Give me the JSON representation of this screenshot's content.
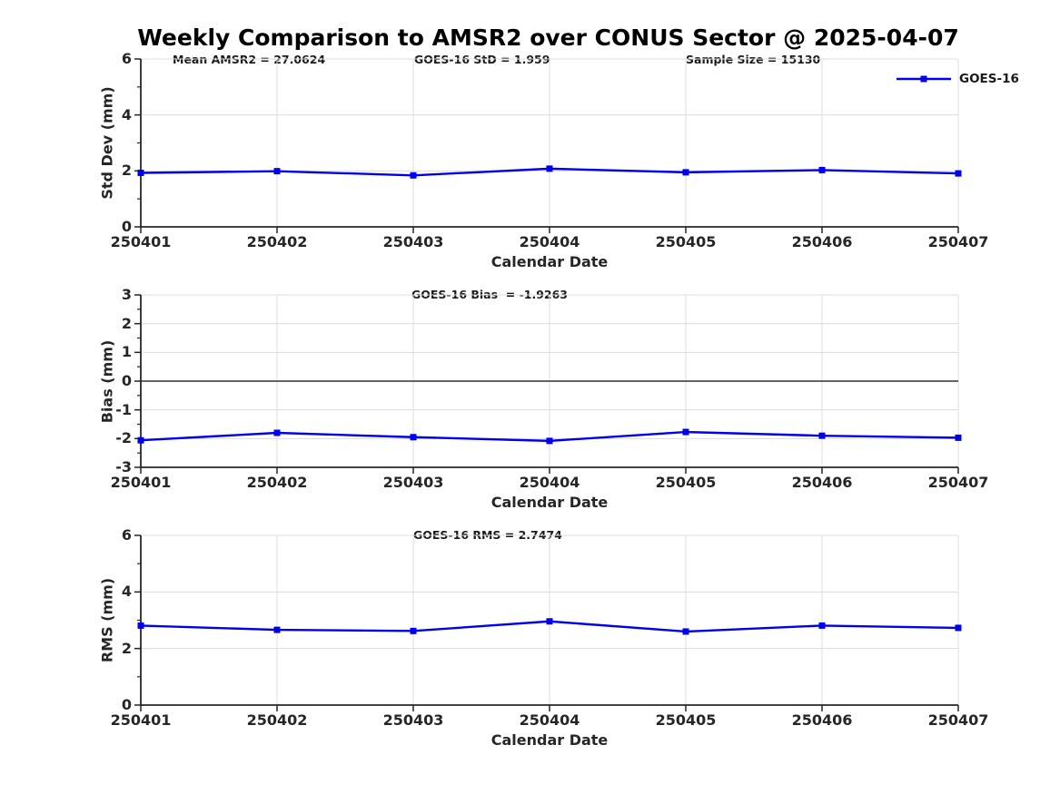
{
  "title": "Weekly Comparison to AMSR2 over CONUS Sector @ 2025-04-07",
  "legend": {
    "label": "GOES-16",
    "position": "top-right"
  },
  "colors": {
    "line": "#0000ee",
    "grid": "#dcdcdc",
    "spine": "#262626",
    "zero_line": "#4d4d4d",
    "text": "#262626"
  },
  "chart_data": [
    {
      "type": "line",
      "name": "std-dev",
      "xlabel": "Calendar Date",
      "ylabel": "Std Dev (mm)",
      "categories": [
        "250401",
        "250402",
        "250403",
        "250404",
        "250405",
        "250406",
        "250407"
      ],
      "series": [
        {
          "name": "GOES-16",
          "values": [
            1.93,
            1.99,
            1.84,
            2.08,
            1.95,
            2.03,
            1.91
          ]
        }
      ],
      "ylim": [
        0,
        6
      ],
      "yticks": [
        0,
        2,
        4,
        6
      ],
      "yticks_minor": [
        1,
        3,
        5
      ],
      "grid": true,
      "zero_line": false,
      "annotations": [
        "Mean AMSR2 = 27.0624",
        "GOES-16 StD = 1.959",
        "Sample Size = 15130"
      ]
    },
    {
      "type": "line",
      "name": "bias",
      "xlabel": "Calendar Date",
      "ylabel": "Bias (mm)",
      "categories": [
        "250401",
        "250402",
        "250403",
        "250404",
        "250405",
        "250406",
        "250407"
      ],
      "series": [
        {
          "name": "GOES-16",
          "values": [
            -2.06,
            -1.8,
            -1.95,
            -2.08,
            -1.77,
            -1.9,
            -1.97
          ]
        }
      ],
      "ylim": [
        -3,
        3
      ],
      "yticks": [
        -3,
        -2,
        -1,
        0,
        1,
        2,
        3
      ],
      "yticks_minor": [
        -2.5,
        -1.5,
        -0.5,
        0.5,
        1.5,
        2.5
      ],
      "grid": true,
      "zero_line": true,
      "annotations": [
        "GOES-16 Bias  = -1.9263"
      ]
    },
    {
      "type": "line",
      "name": "rms",
      "xlabel": "Calendar Date",
      "ylabel": "RMS (mm)",
      "categories": [
        "250401",
        "250402",
        "250403",
        "250404",
        "250405",
        "250406",
        "250407"
      ],
      "series": [
        {
          "name": "GOES-16",
          "values": [
            2.81,
            2.66,
            2.62,
            2.96,
            2.6,
            2.81,
            2.73
          ]
        }
      ],
      "ylim": [
        0,
        6
      ],
      "yticks": [
        0,
        2,
        4,
        6
      ],
      "yticks_minor": [
        1,
        3,
        5
      ],
      "grid": true,
      "zero_line": false,
      "annotations": [
        "GOES-16 RMS = 2.7474"
      ]
    }
  ]
}
